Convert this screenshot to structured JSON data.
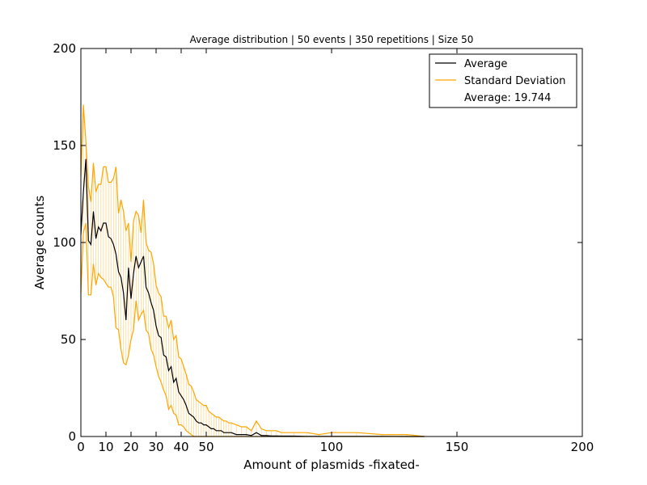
{
  "chart_data": {
    "type": "line",
    "title": "Average distribution | 50 events | 350 repetitions | Size 50",
    "xlabel": "Amount of plasmids -fixated-",
    "ylabel": "Average counts",
    "xlim": [
      0,
      200
    ],
    "ylim": [
      0,
      200
    ],
    "x_ticks": [
      0,
      10,
      20,
      30,
      40,
      50,
      100,
      150,
      200
    ],
    "y_ticks": [
      0,
      50,
      100,
      150,
      200
    ],
    "grid": false,
    "legend_position": "top-right",
    "legend": {
      "average": "Average",
      "std": "Standard Deviation",
      "note": "Average: 19.744"
    },
    "colors": {
      "average": "#000000",
      "std": "#ffa500",
      "std_fill": "#ffd27f"
    },
    "series": [
      {
        "name": "Average",
        "x": [
          0,
          1,
          2,
          3,
          4,
          5,
          6,
          7,
          8,
          9,
          10,
          11,
          12,
          13,
          14,
          15,
          16,
          17,
          18,
          19,
          20,
          21,
          22,
          23,
          24,
          25,
          26,
          27,
          28,
          29,
          30,
          31,
          32,
          33,
          34,
          35,
          36,
          37,
          38,
          39,
          40,
          41,
          42,
          43,
          44,
          45,
          46,
          47,
          48,
          49,
          50,
          51,
          52,
          53,
          54,
          55,
          56,
          57,
          58,
          59,
          60,
          62,
          64,
          66,
          68,
          70,
          72,
          74,
          76,
          78,
          80,
          85,
          90,
          95,
          100,
          110,
          120,
          130,
          137
        ],
        "values": [
          104,
          126,
          143,
          101,
          99,
          116,
          102,
          108,
          106,
          110,
          110,
          103,
          102,
          99,
          94,
          85,
          82,
          74,
          60,
          87,
          71,
          84,
          93,
          87,
          90,
          93,
          77,
          74,
          69,
          65,
          57,
          52,
          51,
          42,
          41,
          34,
          36,
          28,
          30,
          23,
          21,
          19,
          16,
          12,
          11,
          10,
          8,
          7,
          7,
          6,
          6,
          5,
          4,
          4,
          3,
          3,
          3,
          2,
          2,
          2,
          2,
          1,
          1,
          1,
          0.5,
          2,
          0.5,
          0.5,
          0.3,
          0.3,
          0.2,
          0.2,
          0.1,
          0.1,
          0.1,
          0.1,
          0.1,
          0,
          0
        ]
      },
      {
        "name": "Standard Deviation",
        "x": [
          0,
          1,
          2,
          3,
          4,
          5,
          6,
          7,
          8,
          9,
          10,
          11,
          12,
          13,
          14,
          15,
          16,
          17,
          18,
          19,
          20,
          21,
          22,
          23,
          24,
          25,
          26,
          27,
          28,
          29,
          30,
          31,
          32,
          33,
          34,
          35,
          36,
          37,
          38,
          39,
          40,
          41,
          42,
          43,
          44,
          45,
          46,
          47,
          48,
          49,
          50,
          51,
          52,
          53,
          54,
          55,
          56,
          57,
          58,
          59,
          60,
          62,
          64,
          66,
          68,
          70,
          72,
          74,
          76,
          78,
          80,
          85,
          90,
          95,
          100,
          110,
          120,
          130,
          137
        ],
        "upper": [
          134,
          171,
          152,
          129,
          121,
          141,
          126,
          130,
          130,
          139,
          139,
          131,
          131,
          133,
          139,
          115,
          122,
          116,
          106,
          110,
          90,
          111,
          116,
          114,
          105,
          122,
          100,
          96,
          95,
          89,
          78,
          74,
          72,
          62,
          62,
          56,
          60,
          50,
          52,
          41,
          40,
          36,
          32,
          27,
          26,
          23,
          19,
          18,
          17,
          16,
          16,
          13,
          12,
          11,
          10,
          10,
          9,
          8,
          8,
          7,
          7,
          6,
          5,
          5,
          3,
          8,
          4,
          3,
          3,
          3,
          2,
          2,
          2,
          1,
          2,
          2,
          1,
          1,
          0
        ],
        "lower": [
          74,
          105,
          110,
          73,
          73,
          89,
          78,
          84,
          82,
          81,
          79,
          77,
          77,
          72,
          56,
          55,
          45,
          38,
          37,
          42,
          50,
          55,
          70,
          60,
          63,
          65,
          55,
          53,
          45,
          42,
          36,
          31,
          28,
          24,
          21,
          14,
          16,
          12,
          11,
          6,
          6,
          5,
          3,
          2,
          1,
          0,
          0,
          0,
          0,
          0,
          0,
          0,
          0,
          0,
          0,
          0,
          0,
          0,
          0,
          0,
          0,
          0,
          0,
          0,
          0,
          0,
          0,
          0,
          0,
          0,
          0,
          0,
          0,
          0,
          0,
          0,
          0,
          0,
          0
        ]
      }
    ]
  }
}
